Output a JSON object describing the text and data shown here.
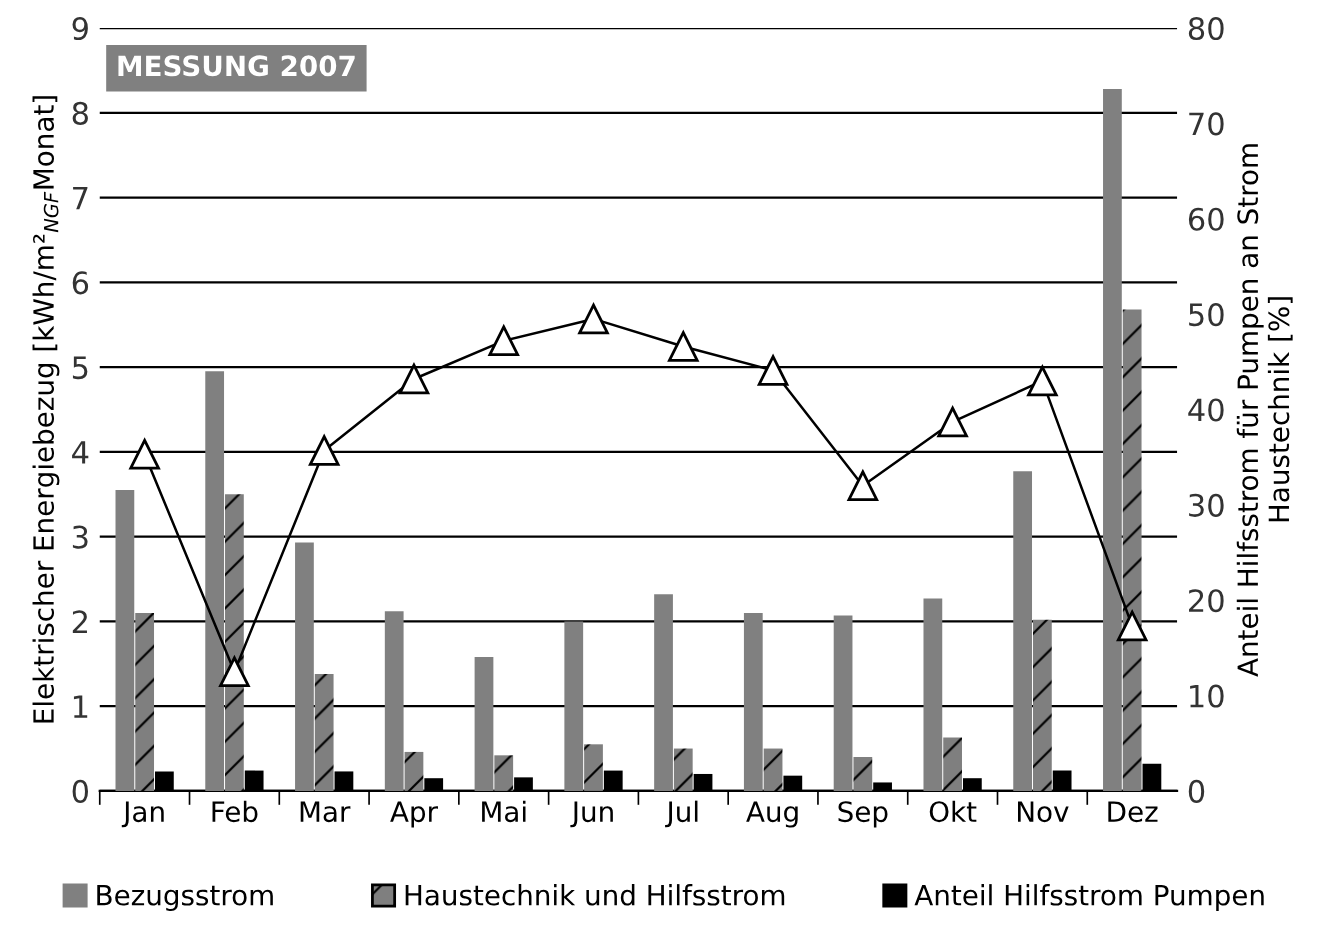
{
  "chart_data": {
    "type": "bar",
    "title": "MESSUNG 2007",
    "ylabel": "Elektrischer Energiebezug [kWh/m²$_{NGF}$Monat]",
    "y2label": "Anteil Hilfsstrom für Pumpen an Strom\nHaustechnik [%]",
    "categories": [
      "Jan",
      "Feb",
      "Mar",
      "Apr",
      "Mai",
      "Jun",
      "Jul",
      "Aug",
      "Sep",
      "Okt",
      "Nov",
      "Dez"
    ],
    "series": [
      {
        "name": "Bezugsstrom",
        "color": "#808080",
        "values": [
          3.55,
          4.95,
          2.93,
          2.12,
          1.58,
          2.0,
          2.32,
          2.1,
          2.07,
          2.27,
          3.77,
          8.28
        ]
      },
      {
        "name": "Haustechnik und Hilfsstrom",
        "color": "#7f7f7f",
        "values": [
          2.1,
          3.5,
          1.38,
          0.46,
          0.42,
          0.55,
          0.5,
          0.5,
          0.4,
          0.63,
          2.02,
          5.68
        ]
      },
      {
        "name": "Anteil Hilfsstrom Pumpen",
        "color": "#000000",
        "values": [
          0.23,
          0.24,
          0.23,
          0.15,
          0.16,
          0.24,
          0.2,
          0.18,
          0.1,
          0.15,
          0.24,
          0.32
        ]
      },
      {
        "type": "line",
        "axis": "y2",
        "color": "#000000",
        "marker": "triangle",
        "values": [
          35.3,
          12.5,
          35.7,
          43.2,
          47.2,
          49.5,
          46.6,
          44.1,
          32.0,
          38.7,
          43.0,
          17.3
        ]
      }
    ],
    "ylim": [
      0,
      9
    ],
    "yticks": [
      0,
      1,
      2,
      3,
      4,
      5,
      6,
      7,
      8,
      9
    ],
    "y2lim": [
      0,
      80
    ],
    "y2ticks": [
      0,
      10,
      20,
      30,
      40,
      50,
      60,
      70,
      80
    ],
    "grid": "y",
    "legend": "bottom"
  }
}
